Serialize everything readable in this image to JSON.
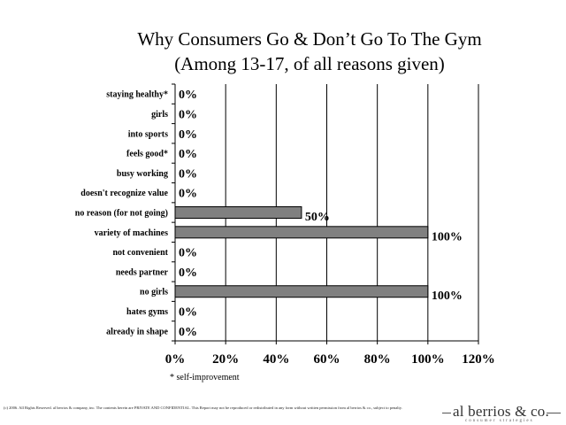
{
  "title_line1": "Why Consumers Go & Don’t Go To The Gym",
  "title_line2": "(Among 13-17, of all reasons given)",
  "footnote": "* self-improvement",
  "copyright": "(c) 2006. All Rights Reserved. al berrios & company, inc. The contents herein are PRIVATE AND CONFIDENTIAL. This Report may not be reproduced or redistributed in any form without written permission from al berrios & co., subject to penalty.",
  "logo": {
    "name": "al berrios & co.",
    "tagline": "consumer strategies"
  },
  "colors": {
    "bar": "#808080",
    "bar_stroke": "#000000",
    "grid": "#000000"
  },
  "chart_data": {
    "type": "bar",
    "orientation": "horizontal",
    "categories": [
      "staying healthy*",
      "girls",
      "into sports",
      "feels good*",
      "busy working",
      "doesn't recognize value",
      "no reason (for not going)",
      "variety of machines",
      "not convenient",
      "needs partner",
      "no girls",
      "hates gyms",
      "already in shape"
    ],
    "values": [
      0,
      0,
      0,
      0,
      0,
      0,
      50,
      100,
      0,
      0,
      100,
      0,
      0
    ],
    "value_labels": [
      "0%",
      "0%",
      "0%",
      "0%",
      "0%",
      "0%",
      "50%",
      "100%",
      "0%",
      "0%",
      "100%",
      "0%",
      "0%"
    ],
    "xlim": [
      0,
      120
    ],
    "xticks": [
      0,
      20,
      40,
      60,
      80,
      100,
      120
    ],
    "xtick_labels": [
      "0%",
      "20%",
      "40%",
      "60%",
      "80%",
      "100%",
      "120%"
    ],
    "grid": "vertical"
  }
}
